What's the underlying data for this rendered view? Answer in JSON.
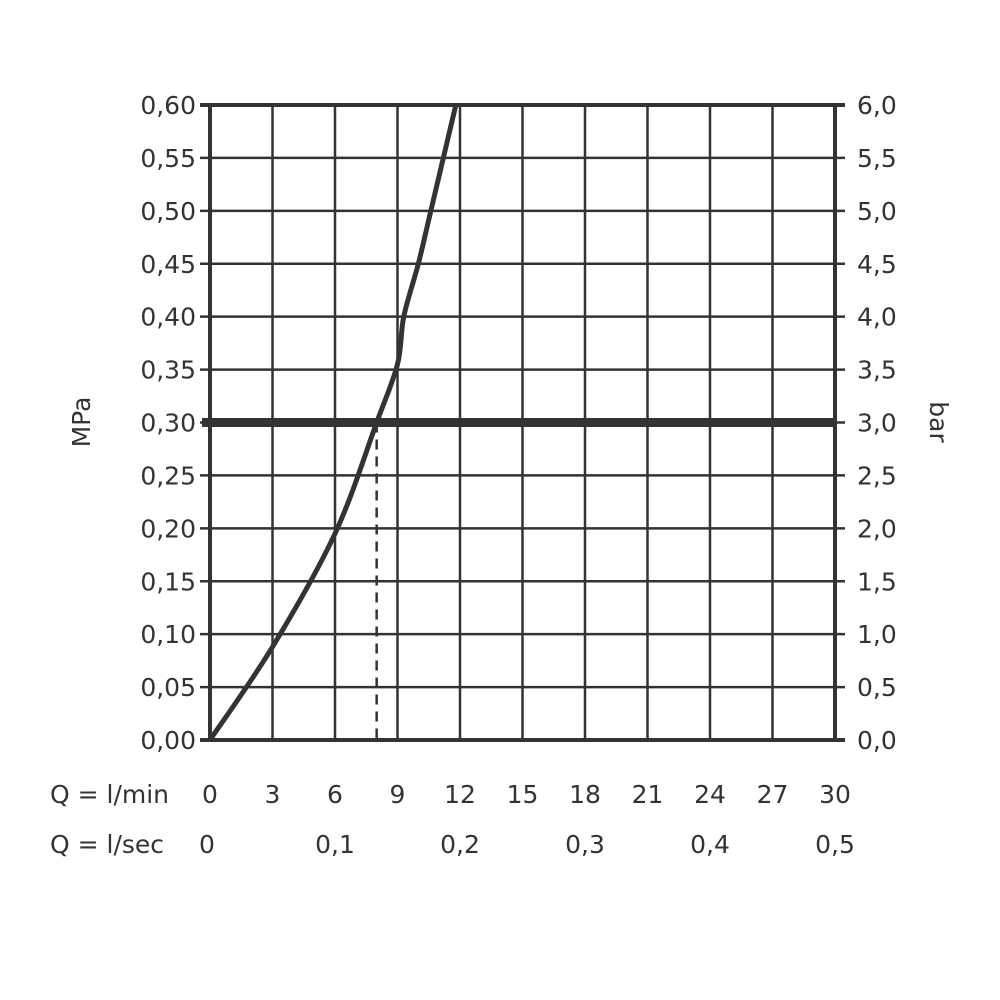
{
  "chart_data": {
    "type": "line",
    "ylabel_left": "MPa",
    "ylabel_right": "bar",
    "xlabel_row1": "Q = l/min",
    "xlabel_row2": "Q = l/sec",
    "xlim": [
      0,
      30
    ],
    "ylim": [
      0,
      0.6
    ],
    "grid": true,
    "x_ticks": [
      "0",
      "3",
      "6",
      "9",
      "12",
      "15",
      "18",
      "21",
      "24",
      "27",
      "30"
    ],
    "x_tick_values": [
      0,
      3,
      6,
      9,
      12,
      15,
      18,
      21,
      24,
      27,
      30
    ],
    "x2_ticks": [
      "0",
      "0,1",
      "0,2",
      "0,3",
      "0,4",
      "0,5"
    ],
    "x2_tick_values": [
      0,
      6,
      12,
      18,
      24,
      30
    ],
    "y_ticks_left": [
      "0,00",
      "0,05",
      "0,10",
      "0,15",
      "0,20",
      "0,25",
      "0,30",
      "0,35",
      "0,40",
      "0,45",
      "0,50",
      "0,55",
      "0,60"
    ],
    "y_ticks_right": [
      "0,0",
      "0,5",
      "1,0",
      "1,5",
      "2,0",
      "2,5",
      "3,0",
      "3,5",
      "4,0",
      "4,5",
      "5,0",
      "5,5",
      "6,0"
    ],
    "y_tick_values": [
      0,
      0.05,
      0.1,
      0.15,
      0.2,
      0.25,
      0.3,
      0.35,
      0.4,
      0.45,
      0.5,
      0.55,
      0.6
    ],
    "series": [
      {
        "x": [
          0,
          3,
          6,
          8,
          9,
          9.3,
          10,
          10.6,
          11.2,
          11.8
        ],
        "y": [
          0,
          0.088,
          0.195,
          0.3,
          0.355,
          0.4,
          0.45,
          0.5,
          0.55,
          0.6
        ]
      }
    ],
    "reference_line_y": 0.3,
    "reference_line_x": 8,
    "color": "#333333"
  }
}
